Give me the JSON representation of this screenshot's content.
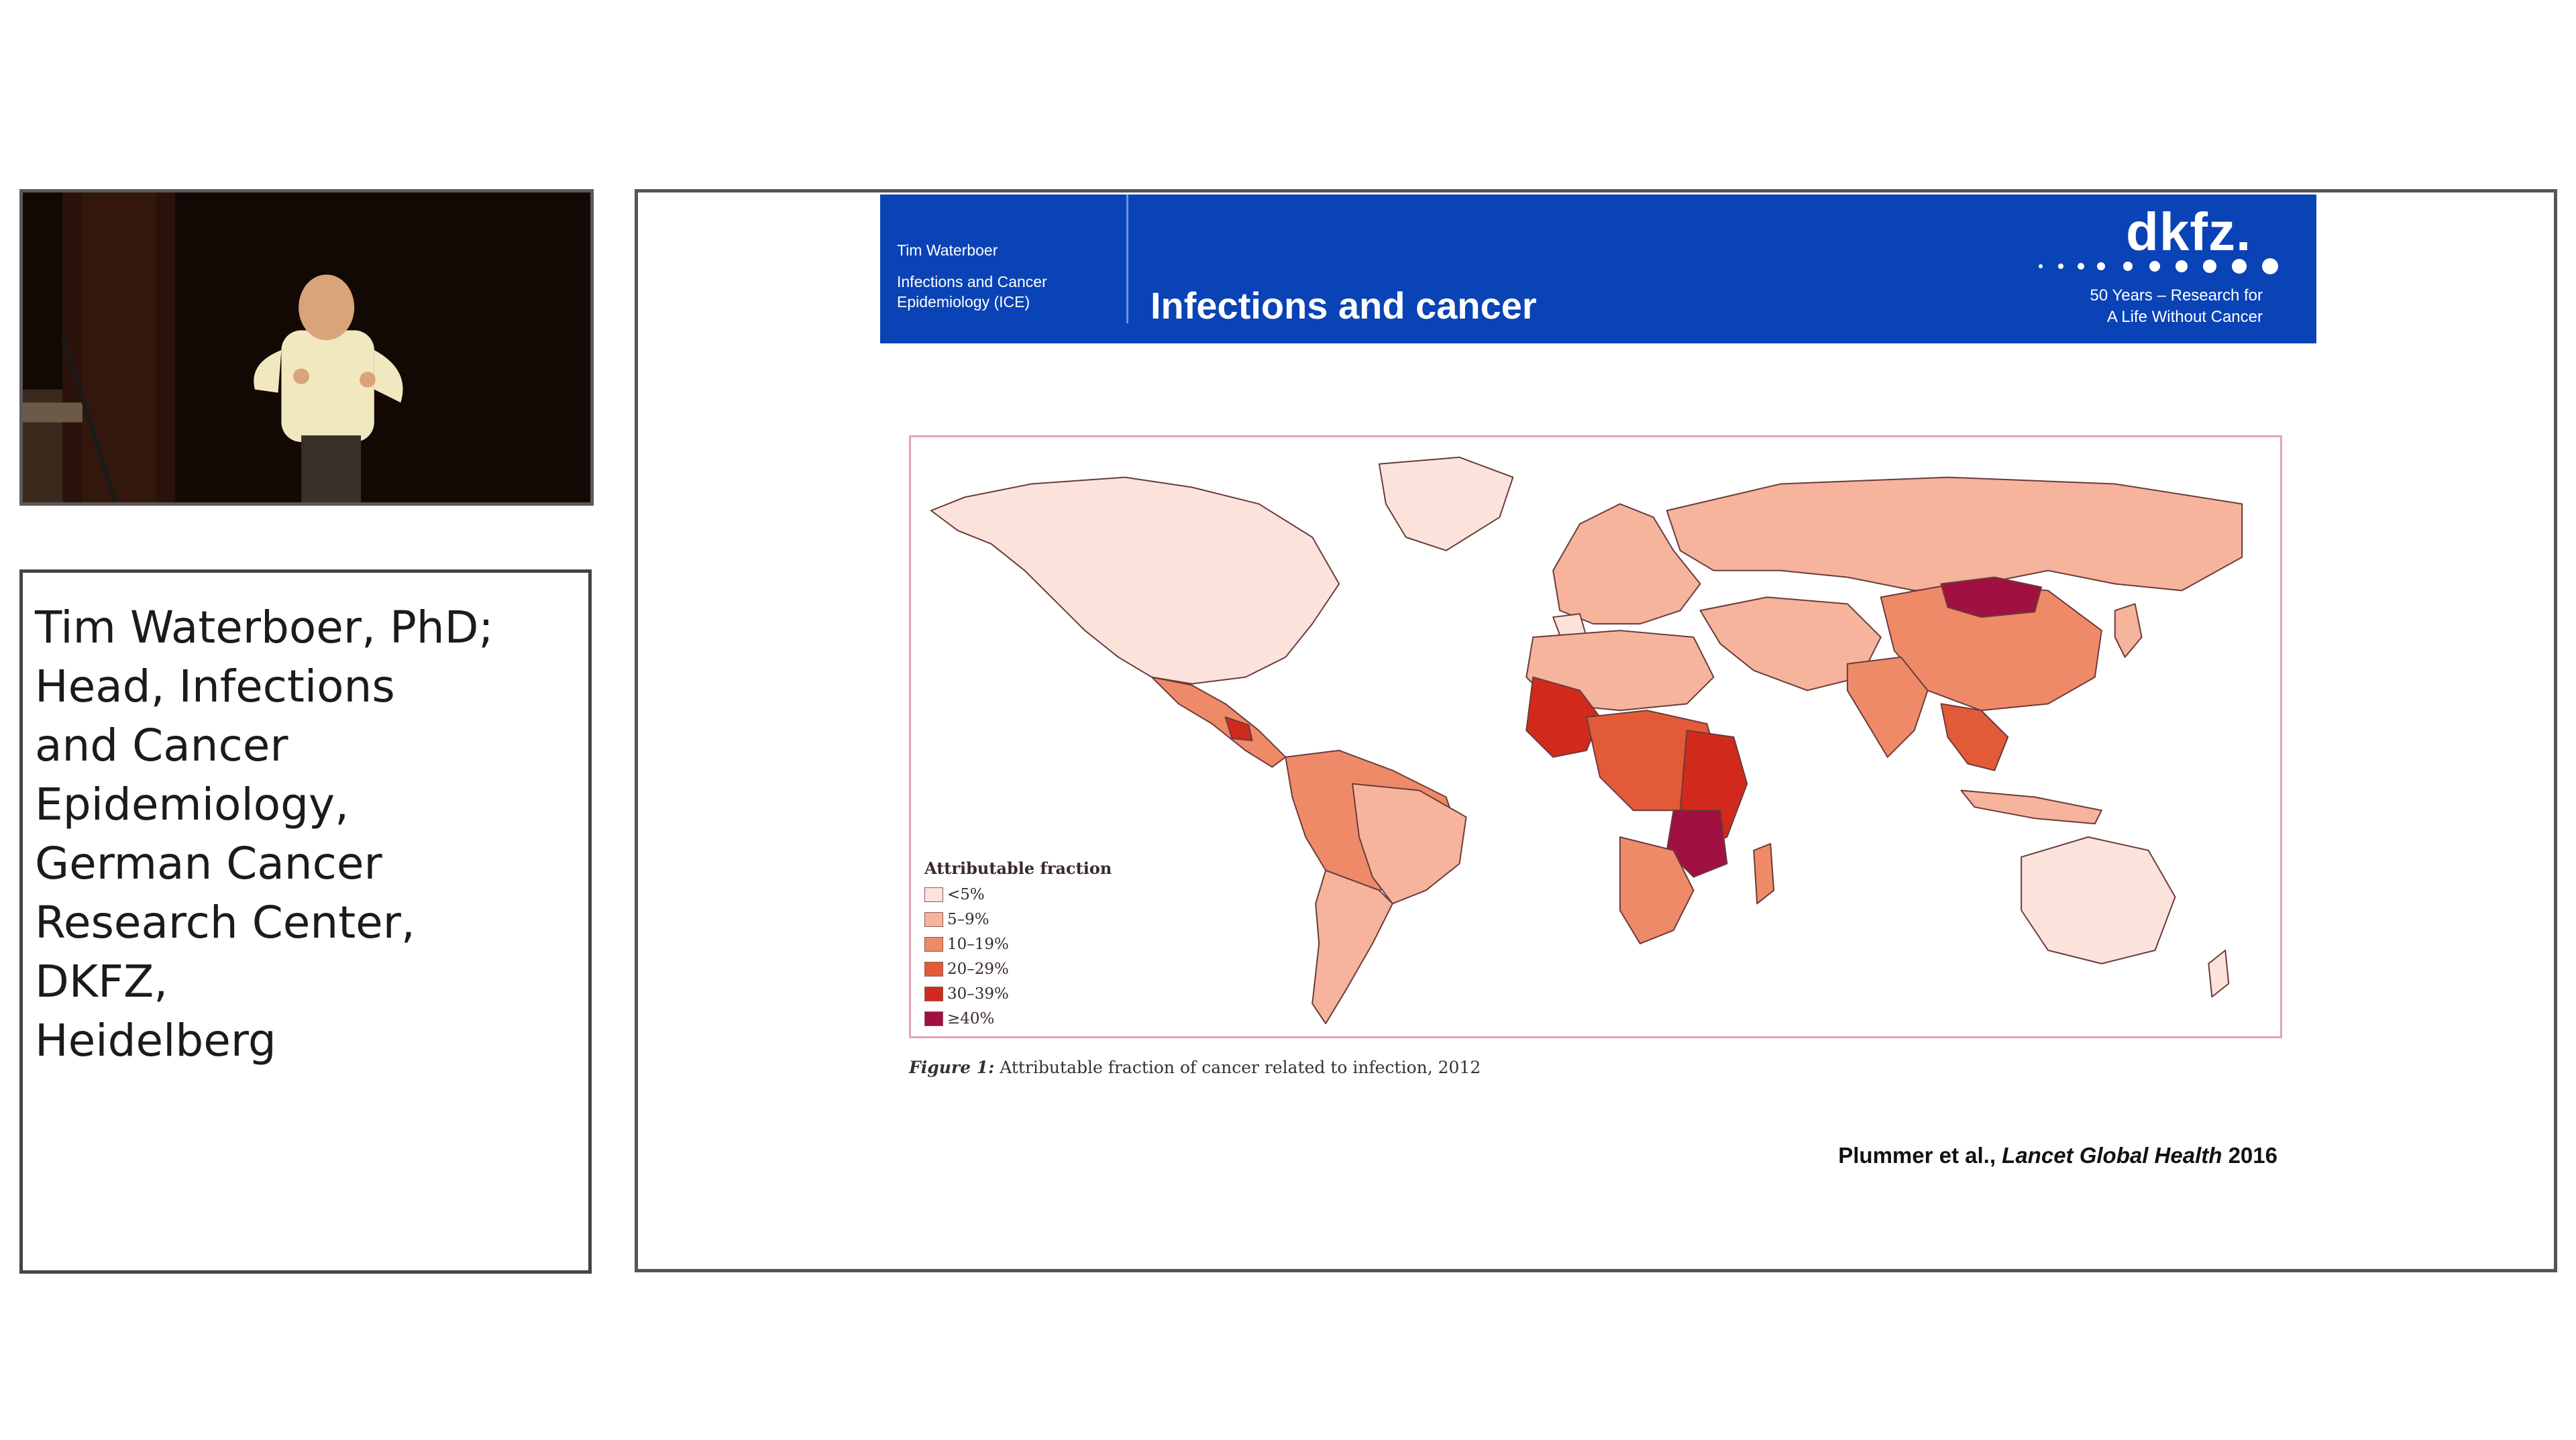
{
  "speaker": {
    "caption_lines": [
      "Tim Waterboer, PhD;",
      "Head, Infections",
      "and Cancer",
      "Epidemiology,",
      "German Cancer",
      "Research Center,",
      "DKFZ,",
      "Heidelberg"
    ]
  },
  "slide": {
    "header": {
      "author": "Tim Waterboer",
      "dept_line1": "Infections and Cancer",
      "dept_line2": "Epidemiology (ICE)",
      "title": "Infections and cancer",
      "logo": "dkfz.",
      "tagline_line1": "50 Years – Research for",
      "tagline_line2": "A Life Without Cancer"
    },
    "legend": {
      "title": "Attributable fraction",
      "items": [
        {
          "label": "<5%",
          "color": "#fbe3dc"
        },
        {
          "label": "5–9%",
          "color": "#f5b49b"
        },
        {
          "label": "10–19%",
          "color": "#ee8a68"
        },
        {
          "label": "20–29%",
          "color": "#e35a38"
        },
        {
          "label": "30–39%",
          "color": "#d12a1d"
        },
        {
          "label": "≥40%",
          "color": "#a01040"
        }
      ]
    },
    "figure_caption": {
      "label": "Figure 1:",
      "text": "Attributable fraction of cancer related to infection, 2012"
    },
    "citation": {
      "authors": "Plummer et al.,",
      "journal": "Lancet Global Health",
      "year": "2016"
    },
    "colors": {
      "header_bg": "#0a43b5",
      "frame_border": "#e3a3ba"
    }
  }
}
